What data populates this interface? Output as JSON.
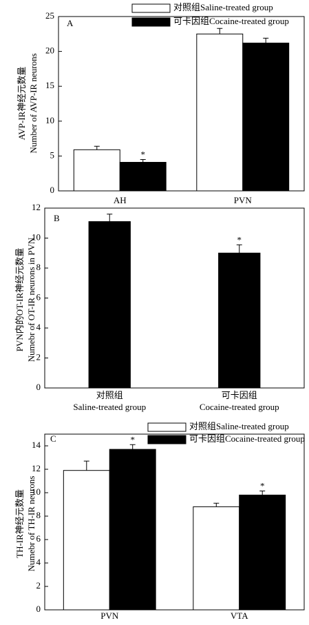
{
  "chart_data": [
    {
      "type": "bar",
      "panel_label": "A",
      "ylabel": [
        "AVP-IR神经元数量",
        "Number of AVP-IR neurons"
      ],
      "categories": [
        "AH",
        "PVN"
      ],
      "series": [
        {
          "name": "对照组Saline-treated group",
          "color": "#ffffff",
          "values": [
            5.9,
            22.5
          ],
          "errors": [
            0.5,
            0.8
          ],
          "significance": [
            null,
            null
          ]
        },
        {
          "name": "可卡因组Cocaine-treated group",
          "color": "#000000",
          "values": [
            4.1,
            21.2
          ],
          "errors": [
            0.4,
            0.7
          ],
          "significance": [
            "*",
            null
          ]
        }
      ],
      "ylim": [
        0,
        25
      ],
      "yticks": [
        0,
        5,
        10,
        15,
        20,
        25
      ]
    },
    {
      "type": "bar",
      "panel_label": "B",
      "ylabel": [
        "PVN内的OT-IR神经元数量",
        "Numebr of OT-IR neurons in PVN"
      ],
      "categories": [
        [
          "对照组",
          "Saline-treated group"
        ],
        [
          "可卡因组",
          "Cocaine-treated group"
        ]
      ],
      "series": [
        {
          "color": "#000000",
          "values": [
            11.1,
            9.0
          ],
          "errors": [
            0.5,
            0.55
          ],
          "significance": [
            null,
            "*"
          ]
        }
      ],
      "ylim": [
        0,
        12
      ],
      "yticks": [
        0,
        2,
        4,
        6,
        8,
        10,
        12
      ]
    },
    {
      "type": "bar",
      "panel_label": "C",
      "ylabel": [
        "TH-IR神经元数量",
        "Numebr of TH-IR neurons"
      ],
      "categories": [
        "PVN",
        "VTA"
      ],
      "series": [
        {
          "name": "对照组Saline-treated group",
          "color": "#ffffff",
          "values": [
            11.9,
            8.8
          ],
          "errors": [
            0.8,
            0.3
          ],
          "significance": [
            null,
            null
          ]
        },
        {
          "name": "可卡因组Cocaine-treated group",
          "color": "#000000",
          "values": [
            13.7,
            9.8
          ],
          "errors": [
            0.4,
            0.35
          ],
          "significance": [
            "*",
            "*"
          ]
        }
      ],
      "ylim": [
        0,
        15
      ],
      "yticks": [
        0,
        2,
        4,
        6,
        8,
        10,
        12,
        14
      ]
    }
  ]
}
